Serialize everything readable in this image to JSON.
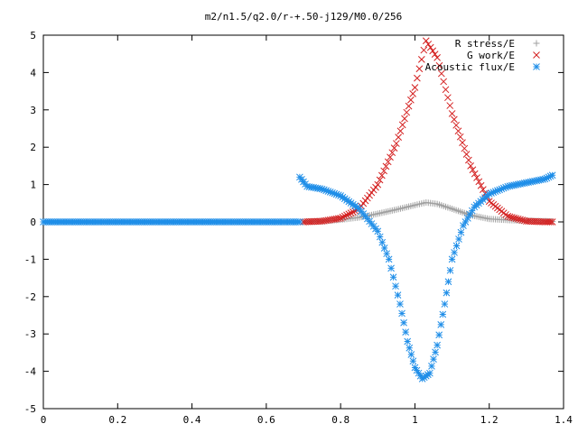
{
  "chart_data": {
    "type": "scatter",
    "title": "m2/n1.5/q2.0/r-+.50-j129/M0.0/256",
    "xlabel": "",
    "ylabel": "",
    "xlim": [
      0,
      1.4
    ],
    "ylim": [
      -5,
      5
    ],
    "x_ticks": [
      "0",
      "0.2",
      "0.4",
      "0.6",
      "0.8",
      "1",
      "1.2",
      "1.4"
    ],
    "y_ticks": [
      "-5",
      "-4",
      "-3",
      "-2",
      "-1",
      "0",
      "1",
      "2",
      "3",
      "4",
      "5"
    ],
    "grid": false,
    "legend_position": "top-right",
    "series": [
      {
        "name": "R stress/E",
        "marker": "plus",
        "color": "#a0a0a0",
        "points": [
          [
            0.7,
            0.0
          ],
          [
            0.75,
            0.02
          ],
          [
            0.8,
            0.06
          ],
          [
            0.85,
            0.12
          ],
          [
            0.9,
            0.22
          ],
          [
            0.95,
            0.33
          ],
          [
            1.0,
            0.45
          ],
          [
            1.03,
            0.52
          ],
          [
            1.06,
            0.48
          ],
          [
            1.1,
            0.35
          ],
          [
            1.15,
            0.18
          ],
          [
            1.2,
            0.08
          ],
          [
            1.25,
            0.05
          ],
          [
            1.3,
            0.03
          ],
          [
            1.35,
            0.02
          ],
          [
            1.37,
            0.01
          ]
        ]
      },
      {
        "name": "G work/E",
        "marker": "cross",
        "color": "#d42020",
        "points": [
          [
            0.7,
            0.0
          ],
          [
            0.75,
            0.02
          ],
          [
            0.8,
            0.1
          ],
          [
            0.85,
            0.35
          ],
          [
            0.9,
            1.0
          ],
          [
            0.95,
            2.1
          ],
          [
            1.0,
            3.6
          ],
          [
            1.03,
            4.85
          ],
          [
            1.06,
            4.4
          ],
          [
            1.1,
            2.9
          ],
          [
            1.15,
            1.5
          ],
          [
            1.2,
            0.55
          ],
          [
            1.25,
            0.15
          ],
          [
            1.3,
            0.02
          ],
          [
            1.35,
            0.0
          ],
          [
            1.37,
            0.0
          ]
        ]
      },
      {
        "name": "Acoustic flux/E",
        "marker": "asterisk",
        "color": "#1f8ee8",
        "points": [
          [
            0.0,
            0.0
          ],
          [
            0.1,
            0.0
          ],
          [
            0.2,
            0.0
          ],
          [
            0.3,
            0.0
          ],
          [
            0.4,
            0.0
          ],
          [
            0.5,
            0.0
          ],
          [
            0.6,
            0.0
          ],
          [
            0.69,
            0.0
          ],
          [
            0.69,
            1.2
          ],
          [
            0.71,
            0.95
          ],
          [
            0.75,
            0.88
          ],
          [
            0.8,
            0.7
          ],
          [
            0.85,
            0.35
          ],
          [
            0.9,
            -0.25
          ],
          [
            0.93,
            -1.0
          ],
          [
            0.96,
            -2.2
          ],
          [
            0.98,
            -3.2
          ],
          [
            1.0,
            -3.9
          ],
          [
            1.02,
            -4.2
          ],
          [
            1.04,
            -4.05
          ],
          [
            1.06,
            -3.3
          ],
          [
            1.08,
            -2.2
          ],
          [
            1.1,
            -1.0
          ],
          [
            1.13,
            -0.1
          ],
          [
            1.16,
            0.4
          ],
          [
            1.2,
            0.75
          ],
          [
            1.25,
            0.95
          ],
          [
            1.3,
            1.05
          ],
          [
            1.35,
            1.15
          ],
          [
            1.37,
            1.25
          ]
        ]
      }
    ]
  }
}
